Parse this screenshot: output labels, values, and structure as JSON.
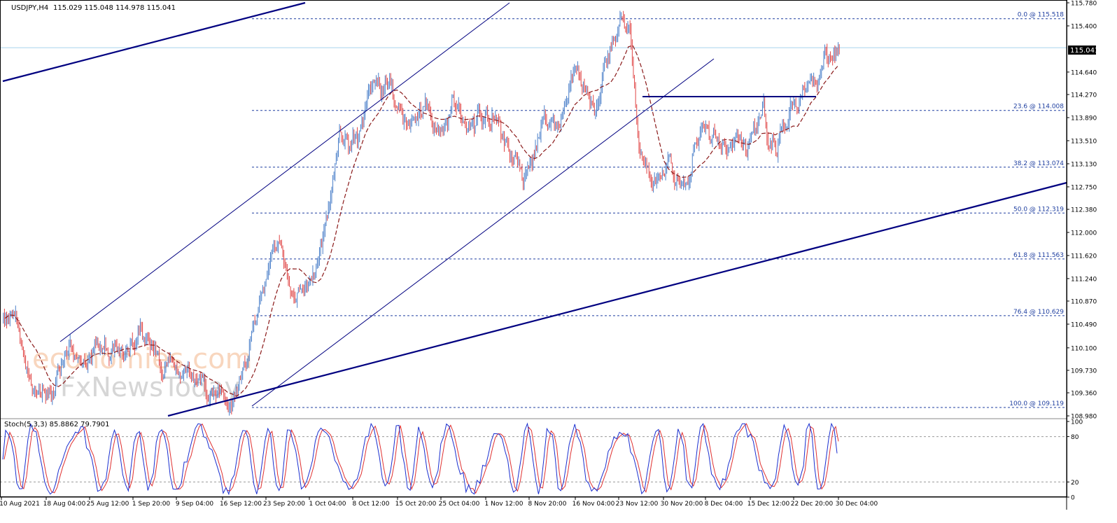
{
  "header": {
    "symbol": "USDJPY,H4",
    "ohlc": "115.029 115.048 114.978 115.041"
  },
  "indicator": {
    "label": "Stoch(5,3,3) 85.8862 79.7901",
    "levels": [
      "100",
      "80",
      "20",
      "0"
    ]
  },
  "watermark": {
    "line1": "economies.com",
    "line2": "FxNewsToday"
  },
  "price_tag": "115.041",
  "colors": {
    "bull": "#4a7fc9",
    "bear": "#e04545",
    "ma": "#8b1a1a",
    "trend": "#000080",
    "fib": "#1f3fa0",
    "price_line": "#a8d4ee",
    "stoch_main": "#1a2fd0",
    "stoch_signal": "#e03030"
  },
  "chart_data": [
    {
      "type": "candlestick",
      "ylim": [
        108.98,
        115.78
      ],
      "y_ticks": [
        "115.780",
        "115.400",
        "115.041",
        "114.640",
        "114.270",
        "113.890",
        "113.510",
        "113.130",
        "112.750",
        "112.380",
        "112.000",
        "111.620",
        "111.240",
        "110.870",
        "110.490",
        "110.100",
        "109.730",
        "109.360",
        "108.980"
      ],
      "x_ticks": [
        "10 Aug 2021",
        "18 Aug 04:00",
        "25 Aug 12:00",
        "1 Sep 20:00",
        "9 Sep 04:00",
        "16 Sep 12:00",
        "23 Sep 20:00",
        "1 Oct 04:00",
        "8 Oct 12:00",
        "15 Oct 20:00",
        "25 Oct 04:00",
        "1 Nov 12:00",
        "8 Nov 20:00",
        "16 Nov 04:00",
        "23 Nov 12:00",
        "30 Nov 20:00",
        "8 Dec 04:00",
        "15 Dec 12:00",
        "22 Dec 20:00",
        "30 Dec 04:00"
      ],
      "close_path": [
        [
          0,
          110.7
        ],
        [
          3,
          110.4
        ],
        [
          6,
          109.4
        ],
        [
          9,
          109.2
        ],
        [
          12,
          109.8
        ],
        [
          15,
          110.1
        ],
        [
          18,
          109.9
        ],
        [
          21,
          110.2
        ],
        [
          24,
          109.9
        ],
        [
          27,
          110.1
        ],
        [
          30,
          110.3
        ],
        [
          33,
          109.9
        ],
        [
          36,
          109.7
        ],
        [
          39,
          109.8
        ],
        [
          42,
          109.7
        ],
        [
          44,
          109.5
        ],
        [
          46,
          109.3
        ],
        [
          48,
          109.35
        ],
        [
          50,
          109.15
        ],
        [
          52,
          109.4
        ],
        [
          54,
          110.0
        ],
        [
          56,
          110.7
        ],
        [
          57,
          110.9
        ],
        [
          59,
          111.5
        ],
        [
          61,
          111.9
        ],
        [
          63,
          111.3
        ],
        [
          65,
          111.0
        ],
        [
          67,
          111.2
        ],
        [
          69,
          111.3
        ],
        [
          70,
          111.6
        ],
        [
          71,
          111.9
        ],
        [
          73,
          112.7
        ],
        [
          74,
          113.2
        ],
        [
          75,
          113.7
        ],
        [
          77,
          113.4
        ],
        [
          79,
          113.6
        ],
        [
          81,
          114.2
        ],
        [
          83,
          114.4
        ],
        [
          84,
          114.3
        ],
        [
          86,
          114.5
        ],
        [
          88,
          114.1
        ],
        [
          90,
          113.7
        ],
        [
          92,
          113.9
        ],
        [
          94,
          114.2
        ],
        [
          96,
          113.8
        ],
        [
          98,
          113.6
        ],
        [
          100,
          114.3
        ],
        [
          102,
          113.9
        ],
        [
          104,
          113.7
        ],
        [
          106,
          114.0
        ],
        [
          108,
          113.9
        ],
        [
          110,
          113.7
        ],
        [
          112,
          113.5
        ],
        [
          114,
          113.2
        ],
        [
          116,
          112.9
        ],
        [
          118,
          113.3
        ],
        [
          120,
          113.8
        ],
        [
          122,
          113.9
        ],
        [
          124,
          113.7
        ],
        [
          126,
          114.2
        ],
        [
          128,
          114.9
        ],
        [
          130,
          114.3
        ],
        [
          132,
          113.9
        ],
        [
          134,
          114.5
        ],
        [
          136,
          115.2
        ],
        [
          138,
          115.5
        ],
        [
          140,
          115.3
        ],
        [
          141,
          114.3
        ],
        [
          142,
          113.3
        ],
        [
          143,
          113.0
        ],
        [
          145,
          112.9
        ],
        [
          147,
          112.8
        ],
        [
          149,
          113.2
        ],
        [
          150,
          112.8
        ],
        [
          152,
          112.7
        ],
        [
          154,
          113.3
        ],
        [
          156,
          113.7
        ],
        [
          158,
          113.6
        ],
        [
          160,
          113.5
        ],
        [
          162,
          113.4
        ],
        [
          164,
          113.6
        ],
        [
          166,
          113.5
        ],
        [
          168,
          113.7
        ],
        [
          170,
          114.1
        ],
        [
          171,
          113.5
        ],
        [
          173,
          113.3
        ],
        [
          174,
          113.8
        ],
        [
          176,
          113.9
        ],
        [
          178,
          114.2
        ],
        [
          180,
          114.4
        ],
        [
          182,
          114.4
        ],
        [
          184,
          115.0
        ],
        [
          186,
          114.9
        ],
        [
          187,
          115.04
        ]
      ],
      "fibonacci": [
        {
          "label": "0.0 @ 115.518",
          "price": 115.518
        },
        {
          "label": "23.6 @ 114.008",
          "price": 114.008
        },
        {
          "label": "38.2 @ 113.074",
          "price": 113.074
        },
        {
          "label": "50.0 @ 112.319",
          "price": 112.319
        },
        {
          "label": "61.8 @ 111.563",
          "price": 111.563
        },
        {
          "label": "76.4 @ 110.629",
          "price": 110.629
        },
        {
          "label": "100.0 @ 109.119",
          "price": 109.119
        }
      ],
      "moving_average": "dashed"
    },
    {
      "type": "line",
      "series": [
        {
          "name": "Stoch(5,3,3)"
        }
      ],
      "ylim": [
        0,
        100
      ],
      "levels": [
        20,
        80
      ]
    }
  ]
}
